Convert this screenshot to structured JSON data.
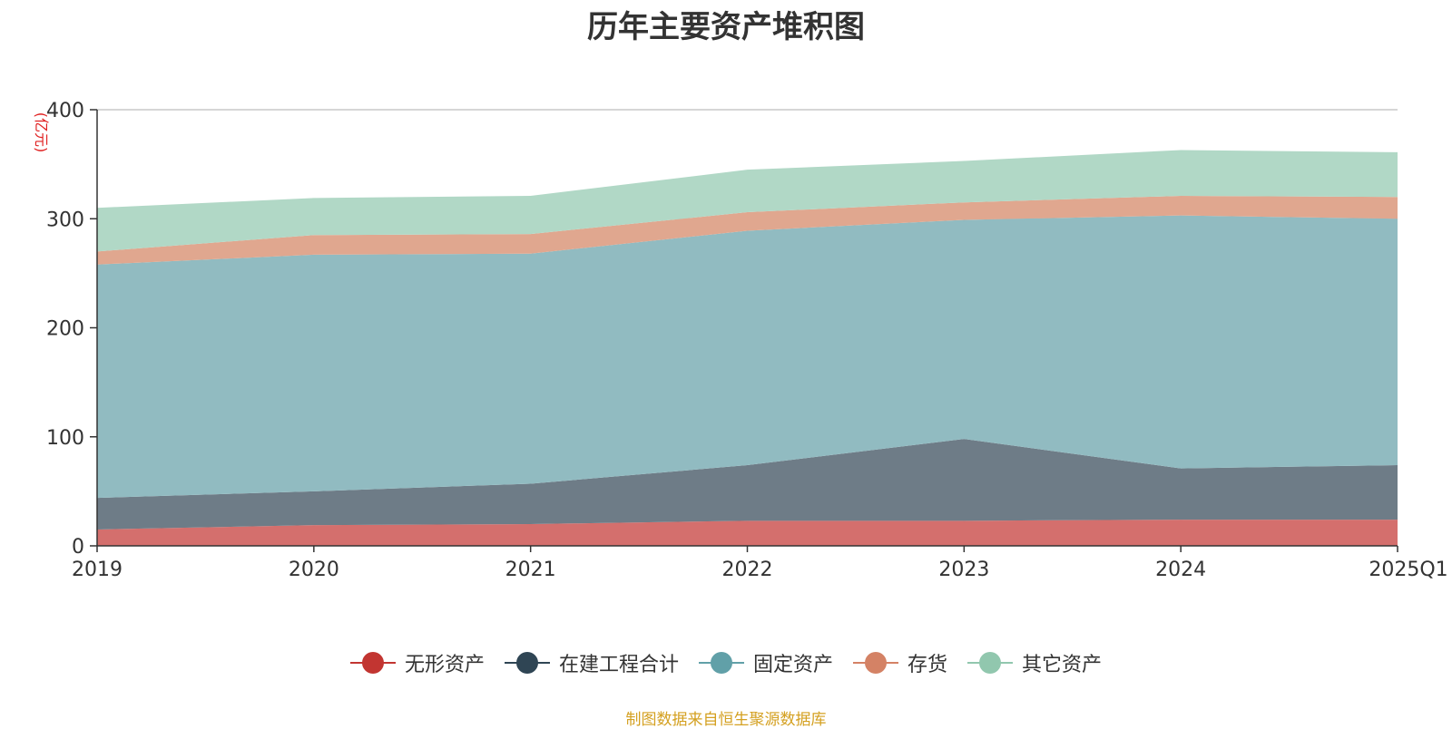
{
  "chart_data": {
    "type": "area",
    "stacked": true,
    "title": "历年主要资产堆积图",
    "ylabel": "(亿元)",
    "xlabel": "",
    "categories": [
      "2019",
      "2020",
      "2021",
      "2022",
      "2023",
      "2024",
      "2025Q1"
    ],
    "ylim": [
      0,
      400
    ],
    "yticks": [
      0,
      100,
      200,
      300,
      400
    ],
    "grid": true,
    "legend_position": "bottom",
    "series": [
      {
        "name": "无形资产",
        "color": "#c23531",
        "fill": "#d46f6d",
        "values": [
          15,
          19,
          20,
          23,
          23,
          24,
          24
        ]
      },
      {
        "name": "在建工程合计",
        "color": "#2f4554",
        "fill": "#6e7c87",
        "values": [
          29,
          31,
          37,
          51,
          75,
          47,
          50
        ]
      },
      {
        "name": "固定资产",
        "color": "#61a0a8",
        "fill": "#91bbc1",
        "values": [
          214,
          217,
          211,
          215,
          201,
          232,
          226
        ]
      },
      {
        "name": "存货",
        "color": "#d48265",
        "fill": "#e0a78f",
        "values": [
          12,
          18,
          18,
          17,
          16,
          18,
          20
        ]
      },
      {
        "name": "其它资产",
        "color": "#91c7ae",
        "fill": "#b1d8c6",
        "values": [
          40,
          34,
          35,
          39,
          38,
          42,
          41
        ]
      }
    ]
  },
  "source_note": "制图数据来自恒生聚源数据库"
}
